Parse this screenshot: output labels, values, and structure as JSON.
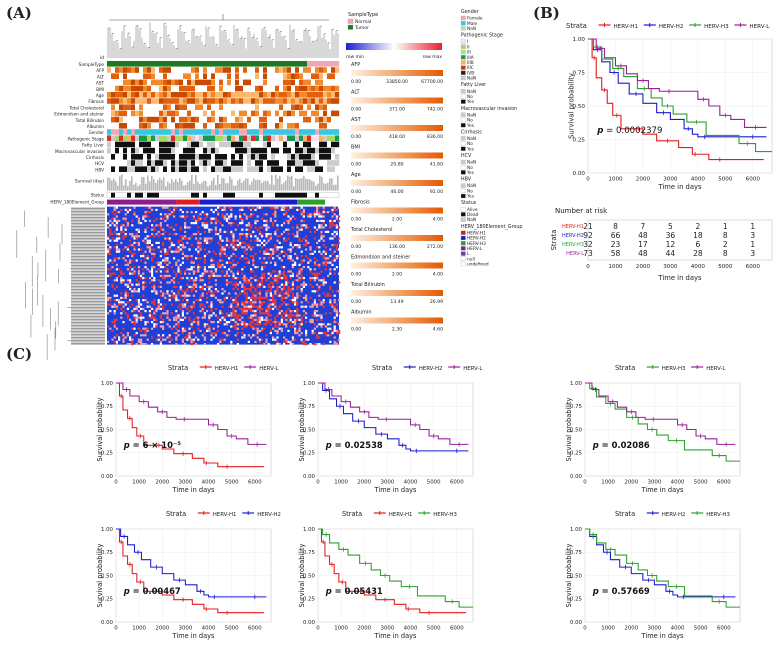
{
  "panel_labels": [
    "(A)",
    "(B)",
    "(C)"
  ],
  "heatmap": {
    "id_label": "id",
    "annotation_rows": [
      "SampleType",
      "AFP",
      "ALT",
      "AST",
      "BMI",
      "Age",
      "Fibrosis",
      "Total Cholesterol",
      "Edmondson and steiner",
      "Total Bilirubin",
      "Albumin",
      "Gender",
      "Pathogenic Stage",
      "Fatty Liver",
      "Macrovascular invasion",
      "Cirrhosis",
      "HCV",
      "HBV"
    ],
    "survival_label": "Survival (day)",
    "status_label": "Status",
    "group_label": "HERV_180Element_Group",
    "colorbar_min": "row min",
    "colorbar_max": "row max",
    "continuous_legends": [
      {
        "title": "AFP",
        "min": "0.00",
        "mid": "33850.00",
        "max": "67700.00"
      },
      {
        "title": "ALT",
        "min": "0.00",
        "mid": "371.00",
        "max": "742.00"
      },
      {
        "title": "AST",
        "min": "0.00",
        "mid": "418.00",
        "max": "836.00"
      },
      {
        "title": "BMI",
        "min": "0.00",
        "mid": "20.80",
        "max": "41.60"
      },
      {
        "title": "Age",
        "min": "0.00",
        "mid": "46.00",
        "max": "92.00"
      },
      {
        "title": "Fibrosis",
        "min": "0.00",
        "mid": "2.00",
        "max": "4.00"
      },
      {
        "title": "Total Cholesterol",
        "min": "0.00",
        "mid": "136.00",
        "max": "272.00"
      },
      {
        "title": "Edmondson and steiner",
        "min": "0.00",
        "mid": "2.00",
        "max": "4.00"
      },
      {
        "title": "Total Bilirubin",
        "min": "0.00",
        "mid": "13.49",
        "max": "26.99"
      },
      {
        "title": "Albumin",
        "min": "0.00",
        "mid": "2.30",
        "max": "4.60"
      }
    ],
    "discrete_legends_left": [
      {
        "title": "SampleType",
        "items": [
          {
            "label": "Normal",
            "color": "#f4a6b4"
          },
          {
            "label": "Tumor",
            "color": "#1f7a1f"
          }
        ]
      }
    ],
    "discrete_legends_right": [
      {
        "title": "Gender",
        "items": [
          {
            "label": "Female",
            "color": "#f4a6b4"
          },
          {
            "label": "Male",
            "color": "#38c6e0"
          },
          {
            "label": "NaN",
            "color": "#cccccc"
          }
        ]
      },
      {
        "title": "Pathogenic Stage",
        "items": [
          {
            "label": "I",
            "color": "#fde0ef"
          },
          {
            "label": "II",
            "color": "#a6d96a"
          },
          {
            "label": "III",
            "color": "#b2df8a"
          },
          {
            "label": "IIIA",
            "color": "#1a9850"
          },
          {
            "label": "IIIB",
            "color": "#fdae61"
          },
          {
            "label": "IIIC",
            "color": "#d73027"
          },
          {
            "label": "IVB",
            "color": "#222222"
          },
          {
            "label": "NaN",
            "color": "#cccccc"
          }
        ]
      },
      {
        "title": "Fatty Liver",
        "items": [
          {
            "label": "NaN",
            "color": "#cccccc"
          },
          {
            "label": "No",
            "color": "#ffffff"
          },
          {
            "label": "Yes",
            "color": "#111111"
          }
        ]
      },
      {
        "title": "Macrovascular invasion",
        "items": [
          {
            "label": "NaN",
            "color": "#cccccc"
          },
          {
            "label": "No",
            "color": "#ffffff"
          },
          {
            "label": "Yes",
            "color": "#111111"
          }
        ]
      },
      {
        "title": "Cirrhosis",
        "items": [
          {
            "label": "NaN",
            "color": "#cccccc"
          },
          {
            "label": "No",
            "color": "#ffffff"
          },
          {
            "label": "Yes",
            "color": "#111111"
          }
        ]
      },
      {
        "title": "HCV",
        "items": [
          {
            "label": "NaN",
            "color": "#cccccc"
          },
          {
            "label": "No",
            "color": "#ffffff"
          },
          {
            "label": "Yes",
            "color": "#111111"
          }
        ]
      },
      {
        "title": "HBV",
        "items": [
          {
            "label": "NaN",
            "color": "#cccccc"
          },
          {
            "label": "No",
            "color": "#ffffff"
          },
          {
            "label": "Yes",
            "color": "#111111"
          }
        ]
      },
      {
        "title": "Status",
        "items": [
          {
            "label": "Alive",
            "color": "#ffffff"
          },
          {
            "label": "Dead",
            "color": "#111111"
          },
          {
            "label": "NaN",
            "color": "#cccccc"
          }
        ]
      },
      {
        "title": "HERV_180Element_Group",
        "items": [
          {
            "label": "HERV-H1",
            "color": "#e41a1c"
          },
          {
            "label": "HERV-H2",
            "color": "#1c1ccf"
          },
          {
            "label": "HERV-H3",
            "color": "#2ca02c"
          },
          {
            "label": "HERV-L",
            "color": "#8e1c8e"
          },
          {
            "label": "L",
            "color": "#6a3d9a"
          },
          {
            "label": "null",
            "color": "#ffffff"
          },
          {
            "label": "undefined",
            "color": "#ffffff"
          }
        ]
      }
    ]
  },
  "km_common": {
    "strata_label": "Strata",
    "xlabel": "Time in days",
    "ylabel": "Survival probability",
    "xticks": [
      0,
      1000,
      2000,
      3000,
      4000,
      5000,
      6000
    ],
    "yticks": [
      "0.00",
      "0.25",
      "0.50",
      "0.75",
      "1.00"
    ],
    "colors": {
      "HERV-H1": "#e41a1c",
      "HERV-H2": "#1c1ccf",
      "HERV-H3": "#2ca02c",
      "HERV-L": "#9a1f9a"
    }
  },
  "risk_table": {
    "title": "Number at risk",
    "strata_label": "Strata",
    "rows": [
      {
        "name": "HERV-H1",
        "values": [
          "21",
          "8",
          "7",
          "5",
          "2",
          "1",
          "1"
        ]
      },
      {
        "name": "HERV-H2",
        "values": [
          "92",
          "66",
          "48",
          "36",
          "18",
          "8",
          "3"
        ]
      },
      {
        "name": "HERV-H3",
        "values": [
          "32",
          "23",
          "17",
          "12",
          "6",
          "2",
          "1"
        ]
      },
      {
        "name": "HERV-L",
        "values": [
          "73",
          "58",
          "48",
          "44",
          "28",
          "8",
          "3"
        ]
      }
    ],
    "xticks": [
      0,
      1000,
      2000,
      3000,
      4000,
      5000,
      6000
    ],
    "xlabel": "Time in days"
  },
  "chart_data": [
    {
      "type": "line",
      "panel": "B",
      "strata": [
        "HERV-H1",
        "HERV-H2",
        "HERV-H3",
        "HERV-L"
      ],
      "p_value": "0.0002379",
      "xlim": [
        0,
        6700
      ],
      "ylim": [
        0,
        1
      ],
      "series": [
        {
          "name": "HERV-H1",
          "x": [
            0,
            150,
            300,
            500,
            700,
            900,
            1200,
            1700,
            2000,
            2500,
            3300,
            3800,
            4000,
            4400,
            5200,
            6400
          ],
          "y": [
            1.0,
            0.86,
            0.71,
            0.62,
            0.52,
            0.43,
            0.33,
            0.33,
            0.29,
            0.24,
            0.19,
            0.14,
            0.14,
            0.1,
            0.1,
            0.1
          ]
        },
        {
          "name": "HERV-H2",
          "x": [
            0,
            200,
            500,
            800,
            1100,
            1500,
            2000,
            2500,
            3000,
            3500,
            3800,
            4000,
            4500,
            5500,
            6500
          ],
          "y": [
            1.0,
            0.92,
            0.83,
            0.75,
            0.67,
            0.59,
            0.52,
            0.45,
            0.4,
            0.33,
            0.29,
            0.27,
            0.27,
            0.27,
            0.27
          ]
        },
        {
          "name": "HERV-H3",
          "x": [
            0,
            200,
            500,
            900,
            1300,
            1800,
            2300,
            2700,
            3100,
            3600,
            4300,
            5500,
            6100,
            6700
          ],
          "y": [
            1.0,
            0.94,
            0.85,
            0.78,
            0.72,
            0.63,
            0.56,
            0.5,
            0.44,
            0.38,
            0.28,
            0.22,
            0.16,
            0.16
          ]
        },
        {
          "name": "HERV-L",
          "x": [
            0,
            300,
            600,
            1000,
            1400,
            1800,
            2200,
            2600,
            3300,
            4000,
            4400,
            4800,
            5200,
            5700,
            6500
          ],
          "y": [
            1.0,
            0.93,
            0.86,
            0.8,
            0.74,
            0.69,
            0.63,
            0.61,
            0.61,
            0.55,
            0.5,
            0.43,
            0.4,
            0.34,
            0.34
          ]
        }
      ]
    },
    {
      "type": "line",
      "panel": "C1",
      "strata": [
        "HERV-H1",
        "HERV-L"
      ],
      "p_value": "6 × 10⁻⁵",
      "xlim": [
        0,
        6700
      ],
      "ylim": [
        0,
        1
      ],
      "series": [
        {
          "name": "HERV-H1",
          "x": [
            0,
            150,
            300,
            500,
            700,
            900,
            1200,
            1700,
            2000,
            2500,
            3300,
            3800,
            4000,
            4400,
            5200,
            6400
          ],
          "y": [
            1.0,
            0.86,
            0.71,
            0.62,
            0.52,
            0.43,
            0.33,
            0.33,
            0.29,
            0.24,
            0.19,
            0.14,
            0.14,
            0.1,
            0.1,
            0.1
          ]
        },
        {
          "name": "HERV-L",
          "x": [
            0,
            300,
            600,
            1000,
            1400,
            1800,
            2200,
            2600,
            3300,
            4000,
            4400,
            4800,
            5200,
            5700,
            6500
          ],
          "y": [
            1.0,
            0.93,
            0.86,
            0.8,
            0.74,
            0.69,
            0.63,
            0.61,
            0.61,
            0.55,
            0.5,
            0.43,
            0.4,
            0.34,
            0.34
          ]
        }
      ]
    },
    {
      "type": "line",
      "panel": "C2",
      "strata": [
        "HERV-H2",
        "HERV-L"
      ],
      "p_value": "0.02538",
      "xlim": [
        0,
        6700
      ],
      "ylim": [
        0,
        1
      ],
      "series": [
        {
          "name": "HERV-H2",
          "x": [
            0,
            200,
            500,
            800,
            1100,
            1500,
            2000,
            2500,
            3000,
            3500,
            3800,
            4000,
            4500,
            5500,
            6500
          ],
          "y": [
            1.0,
            0.92,
            0.83,
            0.75,
            0.67,
            0.59,
            0.52,
            0.45,
            0.4,
            0.33,
            0.29,
            0.27,
            0.27,
            0.27,
            0.27
          ]
        },
        {
          "name": "HERV-L",
          "x": [
            0,
            300,
            600,
            1000,
            1400,
            1800,
            2200,
            2600,
            3300,
            4000,
            4400,
            4800,
            5200,
            5700,
            6500
          ],
          "y": [
            1.0,
            0.93,
            0.86,
            0.8,
            0.74,
            0.69,
            0.63,
            0.61,
            0.61,
            0.55,
            0.5,
            0.43,
            0.4,
            0.34,
            0.34
          ]
        }
      ]
    },
    {
      "type": "line",
      "panel": "C3",
      "strata": [
        "HERV-H3",
        "HERV-L"
      ],
      "p_value": "0.02086",
      "xlim": [
        0,
        6700
      ],
      "ylim": [
        0,
        1
      ],
      "series": [
        {
          "name": "HERV-H3",
          "x": [
            0,
            200,
            500,
            900,
            1300,
            1800,
            2300,
            2700,
            3100,
            3600,
            4300,
            5500,
            6100,
            6700
          ],
          "y": [
            1.0,
            0.94,
            0.85,
            0.78,
            0.72,
            0.63,
            0.56,
            0.5,
            0.44,
            0.38,
            0.28,
            0.22,
            0.16,
            0.16
          ]
        },
        {
          "name": "HERV-L",
          "x": [
            0,
            300,
            600,
            1000,
            1400,
            1800,
            2200,
            2600,
            3300,
            4000,
            4400,
            4800,
            5200,
            5700,
            6500
          ],
          "y": [
            1.0,
            0.93,
            0.86,
            0.8,
            0.74,
            0.69,
            0.63,
            0.61,
            0.61,
            0.55,
            0.5,
            0.43,
            0.4,
            0.34,
            0.34
          ]
        }
      ]
    },
    {
      "type": "line",
      "panel": "C4",
      "strata": [
        "HERV-H1",
        "HERV-H2"
      ],
      "p_value": "0.00467",
      "xlim": [
        0,
        6700
      ],
      "ylim": [
        0,
        1
      ],
      "series": [
        {
          "name": "HERV-H1",
          "x": [
            0,
            150,
            300,
            500,
            700,
            900,
            1200,
            1700,
            2000,
            2500,
            3300,
            3800,
            4000,
            4400,
            5200,
            6400
          ],
          "y": [
            1.0,
            0.86,
            0.71,
            0.62,
            0.52,
            0.43,
            0.33,
            0.33,
            0.29,
            0.24,
            0.19,
            0.14,
            0.14,
            0.1,
            0.1,
            0.1
          ]
        },
        {
          "name": "HERV-H2",
          "x": [
            0,
            200,
            500,
            800,
            1100,
            1500,
            2000,
            2500,
            3000,
            3500,
            3800,
            4000,
            4500,
            5500,
            6500
          ],
          "y": [
            1.0,
            0.92,
            0.83,
            0.75,
            0.67,
            0.59,
            0.52,
            0.45,
            0.4,
            0.33,
            0.29,
            0.27,
            0.27,
            0.27,
            0.27
          ]
        }
      ]
    },
    {
      "type": "line",
      "panel": "C5",
      "strata": [
        "HERV-H1",
        "HERV-H3"
      ],
      "p_value": "0.05431",
      "xlim": [
        0,
        6700
      ],
      "ylim": [
        0,
        1
      ],
      "series": [
        {
          "name": "HERV-H1",
          "x": [
            0,
            150,
            300,
            500,
            700,
            900,
            1200,
            1700,
            2000,
            2500,
            3300,
            3800,
            4000,
            4400,
            5200,
            6400
          ],
          "y": [
            1.0,
            0.86,
            0.71,
            0.62,
            0.52,
            0.43,
            0.33,
            0.33,
            0.29,
            0.24,
            0.19,
            0.14,
            0.14,
            0.1,
            0.1,
            0.1
          ]
        },
        {
          "name": "HERV-H3",
          "x": [
            0,
            200,
            500,
            900,
            1300,
            1800,
            2300,
            2700,
            3100,
            3600,
            4300,
            5500,
            6100,
            6700
          ],
          "y": [
            1.0,
            0.94,
            0.85,
            0.78,
            0.72,
            0.63,
            0.56,
            0.5,
            0.44,
            0.38,
            0.28,
            0.22,
            0.16,
            0.16
          ]
        }
      ]
    },
    {
      "type": "line",
      "panel": "C6",
      "strata": [
        "HERV-H2",
        "HERV-H3"
      ],
      "p_value": "0.57669",
      "xlim": [
        0,
        6700
      ],
      "ylim": [
        0,
        1
      ],
      "series": [
        {
          "name": "HERV-H2",
          "x": [
            0,
            200,
            500,
            800,
            1100,
            1500,
            2000,
            2500,
            3000,
            3500,
            3800,
            4000,
            4500,
            5500,
            6500
          ],
          "y": [
            1.0,
            0.92,
            0.83,
            0.75,
            0.67,
            0.59,
            0.52,
            0.45,
            0.4,
            0.33,
            0.29,
            0.27,
            0.27,
            0.27,
            0.27
          ]
        },
        {
          "name": "HERV-H3",
          "x": [
            0,
            200,
            500,
            900,
            1300,
            1800,
            2300,
            2700,
            3100,
            3600,
            4300,
            5500,
            6100,
            6700
          ],
          "y": [
            1.0,
            0.94,
            0.85,
            0.78,
            0.72,
            0.63,
            0.56,
            0.5,
            0.44,
            0.38,
            0.28,
            0.22,
            0.16,
            0.16
          ]
        }
      ]
    }
  ]
}
